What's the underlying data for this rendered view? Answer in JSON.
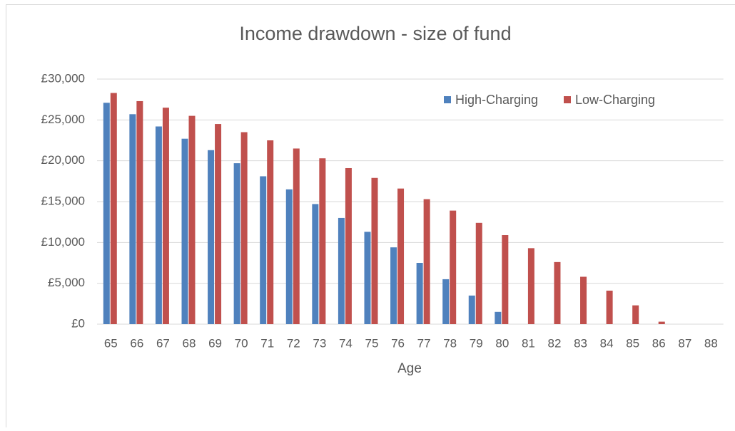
{
  "chart_data": {
    "type": "bar",
    "title": "Income drawdown - size of fund",
    "x_label": "Age",
    "categories": [
      "65",
      "66",
      "67",
      "68",
      "69",
      "70",
      "71",
      "72",
      "73",
      "74",
      "75",
      "76",
      "77",
      "78",
      "79",
      "80",
      "81",
      "82",
      "83",
      "84",
      "85",
      "86",
      "87",
      "88"
    ],
    "series": [
      {
        "name": "High-Charging",
        "color": "#4f81bd",
        "values": [
          27100,
          25700,
          24200,
          22700,
          21300,
          19700,
          18100,
          16500,
          14700,
          13000,
          11300,
          9400,
          7500,
          5500,
          3500,
          1500,
          0,
          0,
          0,
          0,
          0,
          0,
          0,
          0
        ]
      },
      {
        "name": "Low-Charging",
        "color": "#c0504d",
        "values": [
          28300,
          27300,
          26500,
          25500,
          24500,
          23500,
          22500,
          21500,
          20300,
          19100,
          17900,
          16600,
          15300,
          13900,
          12400,
          10900,
          9300,
          7600,
          5800,
          4100,
          2300,
          300,
          0,
          0
        ]
      }
    ],
    "ylim": [
      0,
      30000
    ],
    "yticks": [
      {
        "value": 0,
        "label": "£0"
      },
      {
        "value": 5000,
        "label": "£5,000"
      },
      {
        "value": 10000,
        "label": "£10,000"
      },
      {
        "value": 15000,
        "label": "£15,000"
      },
      {
        "value": 20000,
        "label": "£20,000"
      },
      {
        "value": 25000,
        "label": "£25,000"
      },
      {
        "value": 30000,
        "label": "£30,000"
      }
    ],
    "grid": true,
    "legend": "top-right"
  }
}
